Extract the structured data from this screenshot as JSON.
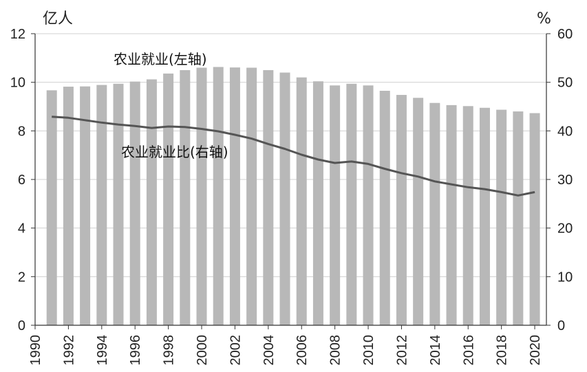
{
  "chart_data": {
    "type": "bar",
    "title": "",
    "left_axis_unit": "亿人",
    "right_axis_unit": "%",
    "x": [
      1991,
      1992,
      1993,
      1994,
      1995,
      1996,
      1997,
      1998,
      1999,
      2000,
      2001,
      2002,
      2003,
      2004,
      2005,
      2006,
      2007,
      2008,
      2009,
      2010,
      2011,
      2012,
      2013,
      2014,
      2015,
      2016,
      2017,
      2018,
      2019,
      2020
    ],
    "x_tick_labels": [
      "1990",
      "1992",
      "1994",
      "1996",
      "1998",
      "2000",
      "2002",
      "2004",
      "2006",
      "2008",
      "2010",
      "2012",
      "2014",
      "2016",
      "2018",
      "2020"
    ],
    "x_tick_values": [
      1990,
      1992,
      1994,
      1996,
      1998,
      2000,
      2002,
      2004,
      2006,
      2008,
      2010,
      2012,
      2014,
      2016,
      2018,
      2020
    ],
    "xlim": [
      1990,
      2020.7
    ],
    "ylim_left": [
      0,
      12
    ],
    "ylim_right": [
      0,
      60
    ],
    "y_left_ticks": [
      0,
      2,
      4,
      6,
      8,
      10,
      12
    ],
    "y_right_ticks": [
      0,
      10,
      20,
      30,
      40,
      50,
      60
    ],
    "grid": true,
    "series": [
      {
        "name": "农业就业(左轴)",
        "type": "bar",
        "axis": "left",
        "color": "#b8b8b8",
        "values": [
          9.67,
          9.82,
          9.83,
          9.89,
          9.94,
          10.03,
          10.12,
          10.36,
          10.5,
          10.6,
          10.63,
          10.61,
          10.6,
          10.5,
          10.4,
          10.2,
          10.04,
          9.87,
          9.94,
          9.87,
          9.65,
          9.48,
          9.36,
          9.15,
          9.06,
          9.02,
          8.95,
          8.87,
          8.8,
          8.73
        ]
      },
      {
        "name": "农业就业比(右轴)",
        "type": "line",
        "axis": "right",
        "color": "#555555",
        "values": [
          42.9,
          42.7,
          42.2,
          41.7,
          41.3,
          41.0,
          40.6,
          40.9,
          40.8,
          40.4,
          39.9,
          39.2,
          38.4,
          37.3,
          36.3,
          35.1,
          34.1,
          33.4,
          33.7,
          33.2,
          32.2,
          31.3,
          30.6,
          29.6,
          29.0,
          28.4,
          28.0,
          27.4,
          26.7,
          27.4
        ]
      }
    ]
  }
}
